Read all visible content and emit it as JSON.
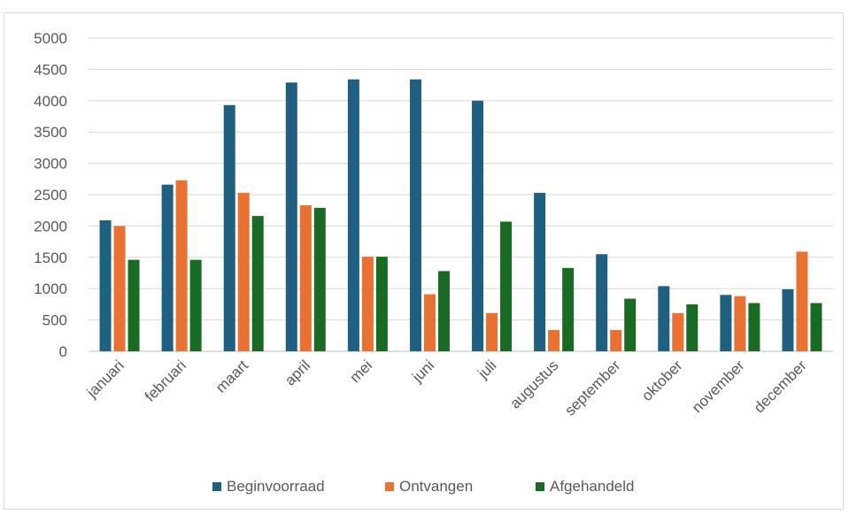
{
  "chart_data": {
    "type": "bar",
    "categories": [
      "januari",
      "februari",
      "maart",
      "april",
      "mei",
      "juni",
      "juli",
      "augustus",
      "september",
      "oktober",
      "november",
      "december"
    ],
    "series": [
      {
        "name": "Beginvoorraad",
        "color": "#1f5f7f",
        "values": [
          2090,
          2660,
          3930,
          4290,
          4340,
          4340,
          4000,
          2530,
          1550,
          1040,
          900,
          990
        ]
      },
      {
        "name": "Ontvangen",
        "color": "#e97132",
        "values": [
          2000,
          2730,
          2530,
          2330,
          1510,
          910,
          610,
          340,
          340,
          610,
          880,
          1590
        ]
      },
      {
        "name": "Afgehandeld",
        "color": "#196b24",
        "values": [
          1460,
          1460,
          2160,
          2290,
          1510,
          1280,
          2070,
          1330,
          840,
          750,
          770,
          770
        ]
      }
    ],
    "ylim": [
      0,
      5000
    ],
    "yticks": [
      "0",
      "500",
      "1000",
      "1500",
      "2000",
      "2500",
      "3000",
      "3500",
      "4000",
      "4500",
      "5000"
    ],
    "grid": true,
    "legend_position": "bottom"
  }
}
